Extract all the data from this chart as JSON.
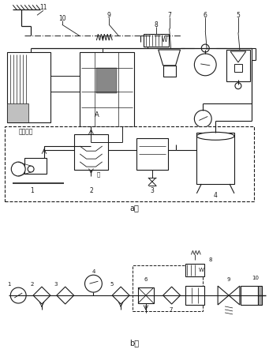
{
  "bg_color": "#ffffff",
  "fig_width": 3.41,
  "fig_height": 4.47,
  "label_a": "a）",
  "label_b": "b）",
  "gas_source_label": "气源装置",
  "water_label": "水"
}
